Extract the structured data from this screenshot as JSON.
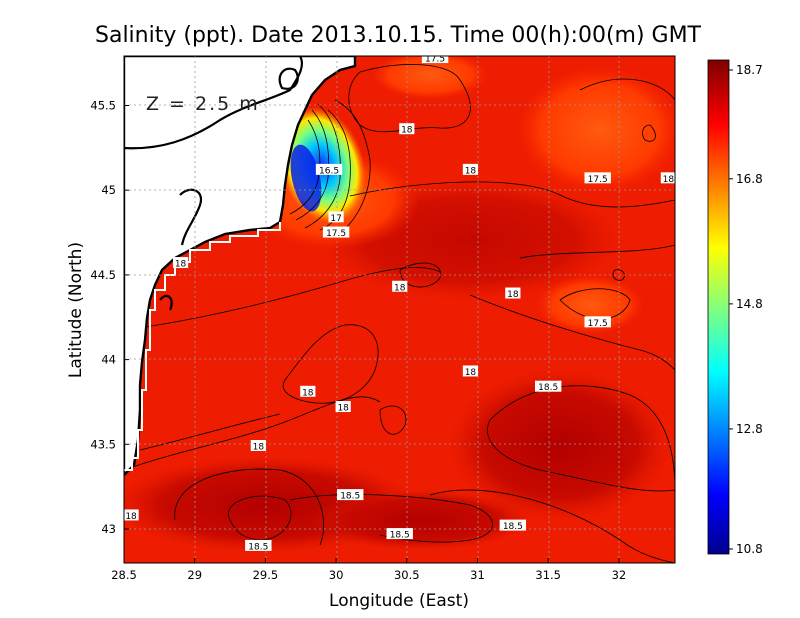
{
  "title": "Salinity (ppt). Date 2013.10.15. Time 00(h):00(m) GMT",
  "depth_label": "Z = 2.5 m",
  "x_axis": {
    "label": "Longitude (East)",
    "ticks": [
      "28.5",
      "29",
      "29.5",
      "30",
      "30.5",
      "31",
      "31.5",
      "32"
    ],
    "range": [
      28.5,
      32.45
    ]
  },
  "y_axis": {
    "label": "Latitude (North)",
    "ticks": [
      "43",
      "43.5",
      "44",
      "44.5",
      "45",
      "45.5"
    ],
    "range": [
      42.8,
      45.78
    ]
  },
  "colorbar": {
    "ticks": [
      "18.7",
      "16.8",
      "14.8",
      "12.8",
      "10.8"
    ],
    "min": 10.8,
    "max": 18.7,
    "colormap": "jet"
  },
  "contour_labels": [
    {
      "text": "17.5",
      "lon": 30.7,
      "lat": 45.78
    },
    {
      "text": "18",
      "lon": 30.5,
      "lat": 45.36
    },
    {
      "text": "16.5",
      "lon": 29.95,
      "lat": 45.12
    },
    {
      "text": "18",
      "lon": 30.95,
      "lat": 45.12
    },
    {
      "text": "17.5",
      "lon": 31.85,
      "lat": 45.07
    },
    {
      "text": "18",
      "lon": 32.35,
      "lat": 45.07
    },
    {
      "text": "17",
      "lon": 30.0,
      "lat": 44.84
    },
    {
      "text": "17.5",
      "lon": 30.0,
      "lat": 44.75
    },
    {
      "text": "18",
      "lon": 28.9,
      "lat": 44.57
    },
    {
      "text": "18",
      "lon": 30.45,
      "lat": 44.43
    },
    {
      "text": "18",
      "lon": 31.25,
      "lat": 44.39
    },
    {
      "text": "17.5",
      "lon": 31.85,
      "lat": 44.22
    },
    {
      "text": "18",
      "lon": 30.95,
      "lat": 43.93
    },
    {
      "text": "18.5",
      "lon": 31.5,
      "lat": 43.84
    },
    {
      "text": "18",
      "lon": 29.8,
      "lat": 43.81
    },
    {
      "text": "18",
      "lon": 30.05,
      "lat": 43.72
    },
    {
      "text": "18",
      "lon": 29.45,
      "lat": 43.49
    },
    {
      "text": "18.5",
      "lon": 30.1,
      "lat": 43.2
    },
    {
      "text": "18",
      "lon": 28.55,
      "lat": 43.08
    },
    {
      "text": "18.5",
      "lon": 31.25,
      "lat": 43.02
    },
    {
      "text": "18.5",
      "lon": 30.45,
      "lat": 42.97
    },
    {
      "text": "18.5",
      "lon": 29.45,
      "lat": 42.9
    }
  ],
  "colors": {
    "background_field": "#f01e00",
    "land": "#ffffff",
    "coast": "#000000",
    "grid": "#9a9a9a"
  }
}
